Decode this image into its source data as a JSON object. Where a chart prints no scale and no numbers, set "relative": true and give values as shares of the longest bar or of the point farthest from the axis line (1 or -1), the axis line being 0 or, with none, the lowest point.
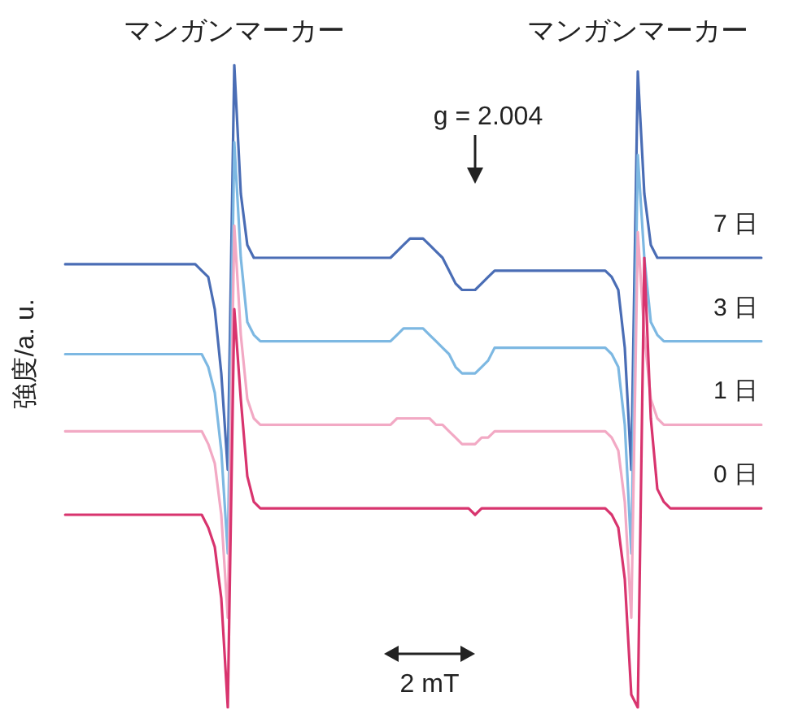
{
  "chart_data": {
    "type": "line",
    "relative": true,
    "ylabel": "強度/a. u.",
    "categories": [
      null,
      null,
      null,
      null,
      null,
      null,
      null,
      null,
      null,
      null,
      null,
      null,
      null,
      null,
      null,
      null,
      null,
      null,
      null,
      null,
      null,
      null,
      null,
      null,
      null,
      null,
      null,
      null,
      null,
      null,
      null,
      null,
      null,
      null,
      null,
      null,
      null,
      null,
      null,
      null,
      null,
      null,
      null,
      null,
      null,
      null,
      null,
      null,
      null,
      null,
      null,
      null,
      null,
      null,
      null,
      null,
      null,
      null,
      null,
      null,
      null,
      null,
      null,
      null,
      null,
      null,
      null,
      null,
      null,
      null,
      null,
      null,
      null,
      null,
      null,
      null,
      null,
      null,
      null,
      null,
      null,
      null,
      null,
      null,
      null,
      null,
      null,
      null,
      null,
      null,
      null,
      null,
      null,
      null,
      null,
      null,
      null,
      null,
      null,
      null,
      null,
      null,
      null,
      null,
      null,
      null,
      null,
      null
    ],
    "annotations": [
      "マンガンマーカー",
      "マンガンマーカー",
      "g = 2.004",
      "2 mT"
    ],
    "legend": false,
    "marker": "none",
    "line_style": "solid",
    "series": [
      {
        "name": "7 日",
        "color": "#4a6db5",
        "values": [
          0.69,
          0.69,
          0.69,
          0.69,
          0.69,
          0.69,
          0.69,
          0.69,
          0.69,
          0.69,
          0.69,
          0.69,
          0.69,
          0.69,
          0.69,
          0.69,
          0.69,
          0.69,
          0.69,
          0.69,
          0.69,
          0.68,
          0.67,
          0.62,
          0.52,
          0.37,
          1.0,
          0.8,
          0.72,
          0.7,
          0.7,
          0.7,
          0.7,
          0.7,
          0.7,
          0.7,
          0.7,
          0.7,
          0.7,
          0.7,
          0.7,
          0.7,
          0.7,
          0.7,
          0.7,
          0.7,
          0.7,
          0.7,
          0.7,
          0.7,
          0.7,
          0.71,
          0.72,
          0.73,
          0.73,
          0.73,
          0.72,
          0.71,
          0.7,
          0.68,
          0.66,
          0.65,
          0.65,
          0.65,
          0.66,
          0.67,
          0.68,
          0.68,
          0.68,
          0.68,
          0.68,
          0.68,
          0.68,
          0.68,
          0.68,
          0.68,
          0.68,
          0.68,
          0.68,
          0.68,
          0.68,
          0.68,
          0.68,
          0.68,
          0.67,
          0.65,
          0.56,
          0.37,
          0.99,
          0.8,
          0.72,
          0.7,
          0.7,
          0.7,
          0.7,
          0.7,
          0.7,
          0.7,
          0.7,
          0.7,
          0.7,
          0.7,
          0.7,
          0.7,
          0.7,
          0.7,
          0.7,
          0.7
        ]
      },
      {
        "name": "3 日",
        "color": "#7db8e2",
        "values": [
          0.55,
          0.55,
          0.55,
          0.55,
          0.55,
          0.55,
          0.55,
          0.55,
          0.55,
          0.55,
          0.55,
          0.55,
          0.55,
          0.55,
          0.55,
          0.55,
          0.55,
          0.55,
          0.55,
          0.55,
          0.55,
          0.55,
          0.53,
          0.49,
          0.4,
          0.24,
          0.88,
          0.7,
          0.6,
          0.58,
          0.57,
          0.57,
          0.57,
          0.57,
          0.57,
          0.57,
          0.57,
          0.57,
          0.57,
          0.57,
          0.57,
          0.57,
          0.57,
          0.57,
          0.57,
          0.57,
          0.57,
          0.57,
          0.57,
          0.57,
          0.57,
          0.58,
          0.59,
          0.59,
          0.59,
          0.59,
          0.58,
          0.57,
          0.56,
          0.55,
          0.53,
          0.52,
          0.52,
          0.52,
          0.53,
          0.54,
          0.56,
          0.56,
          0.56,
          0.56,
          0.56,
          0.56,
          0.56,
          0.56,
          0.56,
          0.56,
          0.56,
          0.56,
          0.56,
          0.56,
          0.56,
          0.56,
          0.56,
          0.56,
          0.55,
          0.53,
          0.44,
          0.24,
          0.86,
          0.7,
          0.6,
          0.58,
          0.57,
          0.57,
          0.57,
          0.57,
          0.57,
          0.57,
          0.57,
          0.57,
          0.57,
          0.57,
          0.57,
          0.57,
          0.57,
          0.57,
          0.57,
          0.57
        ]
      },
      {
        "name": "1 日",
        "color": "#f2a9c4",
        "values": [
          0.43,
          0.43,
          0.43,
          0.43,
          0.43,
          0.43,
          0.43,
          0.43,
          0.43,
          0.43,
          0.43,
          0.43,
          0.43,
          0.43,
          0.43,
          0.43,
          0.43,
          0.43,
          0.43,
          0.43,
          0.43,
          0.43,
          0.41,
          0.38,
          0.3,
          0.14,
          0.75,
          0.58,
          0.48,
          0.45,
          0.44,
          0.44,
          0.44,
          0.44,
          0.44,
          0.44,
          0.44,
          0.44,
          0.44,
          0.44,
          0.44,
          0.44,
          0.44,
          0.44,
          0.44,
          0.44,
          0.44,
          0.44,
          0.44,
          0.44,
          0.44,
          0.45,
          0.45,
          0.45,
          0.45,
          0.45,
          0.45,
          0.44,
          0.44,
          0.43,
          0.42,
          0.41,
          0.41,
          0.41,
          0.42,
          0.42,
          0.43,
          0.43,
          0.43,
          0.43,
          0.43,
          0.43,
          0.43,
          0.43,
          0.43,
          0.43,
          0.43,
          0.43,
          0.43,
          0.43,
          0.43,
          0.43,
          0.43,
          0.43,
          0.42,
          0.4,
          0.32,
          0.14,
          0.74,
          0.58,
          0.48,
          0.45,
          0.44,
          0.44,
          0.44,
          0.44,
          0.44,
          0.44,
          0.44,
          0.44,
          0.44,
          0.44,
          0.44,
          0.44,
          0.44,
          0.44,
          0.44,
          0.44
        ]
      },
      {
        "name": "0 日",
        "color": "#d8346e",
        "values": [
          0.3,
          0.3,
          0.3,
          0.3,
          0.3,
          0.3,
          0.3,
          0.3,
          0.3,
          0.3,
          0.3,
          0.3,
          0.3,
          0.3,
          0.3,
          0.3,
          0.3,
          0.3,
          0.3,
          0.3,
          0.3,
          0.3,
          0.28,
          0.25,
          0.17,
          0,
          0.62,
          0.48,
          0.36,
          0.32,
          0.31,
          0.31,
          0.31,
          0.31,
          0.31,
          0.31,
          0.31,
          0.31,
          0.31,
          0.31,
          0.31,
          0.31,
          0.31,
          0.31,
          0.31,
          0.31,
          0.31,
          0.31,
          0.31,
          0.31,
          0.31,
          0.31,
          0.31,
          0.31,
          0.31,
          0.31,
          0.31,
          0.31,
          0.31,
          0.31,
          0.31,
          0.31,
          0.31,
          0.3,
          0.31,
          0.31,
          0.31,
          0.31,
          0.31,
          0.31,
          0.31,
          0.31,
          0.31,
          0.31,
          0.31,
          0.31,
          0.31,
          0.31,
          0.31,
          0.31,
          0.31,
          0.31,
          0.31,
          0.31,
          0.3,
          0.28,
          0.2,
          0.02,
          0,
          0.7,
          0.45,
          0.34,
          0.32,
          0.31,
          0.31,
          0.31,
          0.31,
          0.31,
          0.31,
          0.31,
          0.31,
          0.31,
          0.31,
          0.31,
          0.31,
          0.31,
          0.31,
          0.31
        ]
      }
    ]
  }
}
